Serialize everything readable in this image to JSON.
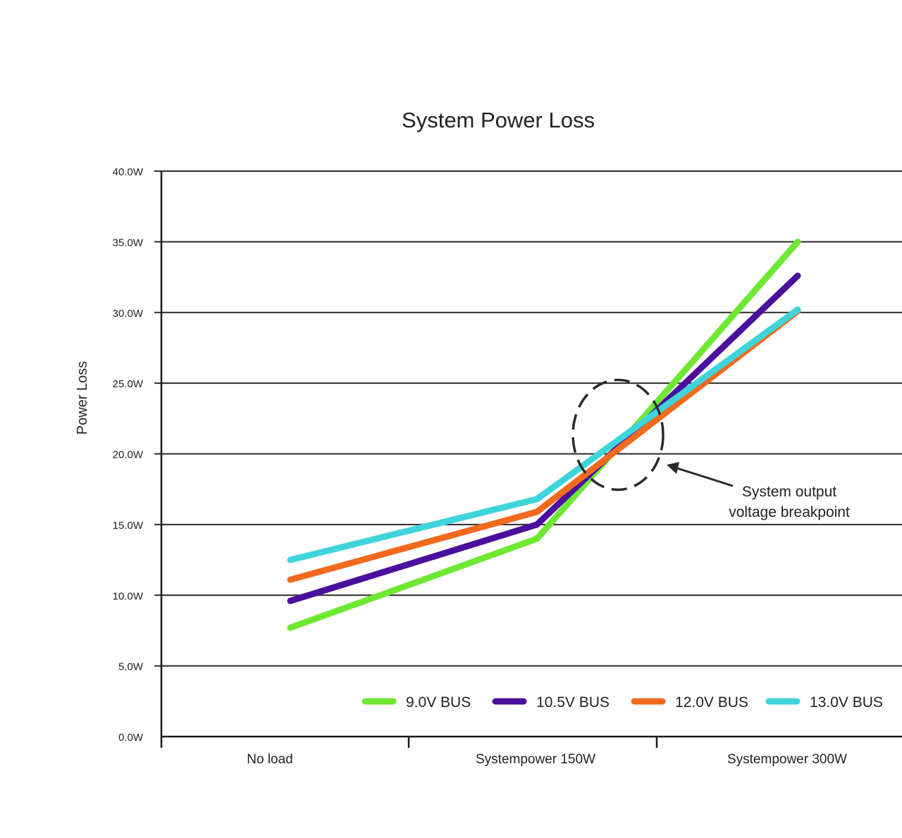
{
  "chart_data": {
    "type": "line",
    "title": "System Power Loss",
    "xlabel": "",
    "ylabel": "Power Loss",
    "categories": [
      "No load",
      "Systempower 150W",
      "Systempower 300W"
    ],
    "ylim": [
      0,
      40
    ],
    "y_ticks": [
      "0.0W",
      "5.0W",
      "10.0W",
      "15.0W",
      "20.0W",
      "25.0W",
      "30.0W",
      "35.0W",
      "40.0W"
    ],
    "grid": true,
    "legend_position": "bottom-right",
    "series": [
      {
        "name": "9.0V BUS",
        "values": [
          7.7,
          14.0,
          35.0
        ],
        "color": "#6ee832"
      },
      {
        "name": "10.5V BUS",
        "values": [
          9.6,
          15.0,
          32.6
        ],
        "color": "#4b0f9e"
      },
      {
        "name": "12.0V BUS",
        "values": [
          11.1,
          15.9,
          30.1
        ],
        "color": "#f26a1e"
      },
      {
        "name": "13.0V BUS",
        "values": [
          12.5,
          16.8,
          30.2
        ],
        "color": "#3fd4dc"
      }
    ],
    "annotation": {
      "lines": [
        "System output",
        "voltage breakpoint"
      ],
      "target_value": 20.5
    }
  }
}
